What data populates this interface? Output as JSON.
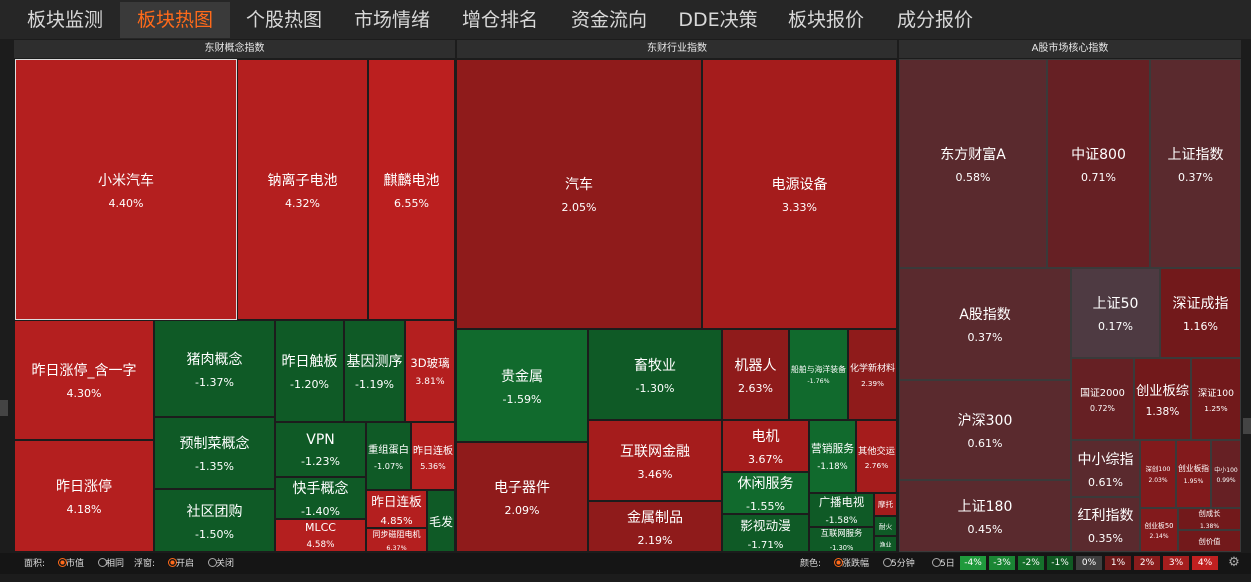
{
  "tabs": [
    "板块监测",
    "板块热图",
    "个股热图",
    "市场情绪",
    "增仓排名",
    "资金流向",
    "DDE决策",
    "板块报价",
    "成分报价"
  ],
  "panels": [
    {
      "title": "东财概念指数",
      "tiles": [
        {
          "name": "小米汽车",
          "change": "4.40%"
        },
        {
          "name": "钠离子电池",
          "change": "4.32%"
        },
        {
          "name": "麒麟电池",
          "change": "6.55%"
        },
        {
          "name": "昨日涨停_含一字",
          "change": "4.30%"
        },
        {
          "name": "昨日涨停",
          "change": "4.18%"
        },
        {
          "name": "猪肉概念",
          "change": "-1.37%"
        },
        {
          "name": "预制菜概念",
          "change": "-1.35%"
        },
        {
          "name": "社区团购",
          "change": "-1.50%"
        },
        {
          "name": "昨日触板",
          "change": "-1.20%"
        },
        {
          "name": "基因测序",
          "change": "-1.19%"
        },
        {
          "name": "3D玻璃",
          "change": "3.81%"
        },
        {
          "name": "VPN",
          "change": "-1.23%"
        },
        {
          "name": "快手概念",
          "change": "-1.40%"
        },
        {
          "name": "MLCC",
          "change": "4.58%"
        },
        {
          "name": "重组蛋白",
          "change": "-1.07%"
        },
        {
          "name": "昨日连板",
          "change": "5.36%"
        },
        {
          "name": "昨日连板",
          "change": "4.85%"
        },
        {
          "name": "同步磁阻电机",
          "change": "6.37%"
        },
        {
          "name": "毛发"
        }
      ]
    },
    {
      "title": "东财行业指数",
      "tiles": [
        {
          "name": "汽车",
          "change": "2.05%"
        },
        {
          "name": "电源设备",
          "change": "3.33%"
        },
        {
          "name": "贵金属",
          "change": "-1.59%"
        },
        {
          "name": "畜牧业",
          "change": "-1.30%"
        },
        {
          "name": "机器人",
          "change": "2.63%"
        },
        {
          "name": "船舶与海洋装备",
          "change": "-1.76%"
        },
        {
          "name": "化学新材料",
          "change": "2.39%"
        },
        {
          "name": "电子器件",
          "change": "2.09%"
        },
        {
          "name": "互联网金融",
          "change": "3.46%"
        },
        {
          "name": "金属制品",
          "change": "2.19%"
        },
        {
          "name": "电机",
          "change": "3.67%"
        },
        {
          "name": "休闲服务",
          "change": "-1.55%"
        },
        {
          "name": "影视动漫",
          "change": "-1.71%"
        },
        {
          "name": "营销服务",
          "change": "-1.18%"
        },
        {
          "name": "其他交运",
          "change": "2.76%"
        },
        {
          "name": "广播电视",
          "change": "-1.58%"
        },
        {
          "name": "互联网服务",
          "change": "-1.30%"
        },
        {
          "name": "摩托"
        },
        {
          "name": "耐火"
        },
        {
          "name": "渔业"
        }
      ]
    },
    {
      "title": "A股市场核心指数",
      "tiles": [
        {
          "name": "东方财富A",
          "change": "0.58%"
        },
        {
          "name": "中证800",
          "change": "0.71%"
        },
        {
          "name": "上证指数",
          "change": "0.37%"
        },
        {
          "name": "A股指数",
          "change": "0.37%"
        },
        {
          "name": "沪深300",
          "change": "0.61%"
        },
        {
          "name": "上证180",
          "change": "0.45%"
        },
        {
          "name": "上证50",
          "change": "0.17%"
        },
        {
          "name": "深证成指",
          "change": "1.16%"
        },
        {
          "name": "国证2000",
          "change": "0.72%"
        },
        {
          "name": "创业板综",
          "change": "1.38%"
        },
        {
          "name": "深证100",
          "change": "1.25%"
        },
        {
          "name": "中小综指",
          "change": "0.61%"
        },
        {
          "name": "深创100",
          "change": "2.03%"
        },
        {
          "name": "创业板指",
          "change": "1.95%"
        },
        {
          "name": "中小100",
          "change": "0.99%"
        },
        {
          "name": "红利指数",
          "change": "0.35%"
        },
        {
          "name": "创业板50",
          "change": "2.14%"
        },
        {
          "name": "创成长",
          "change": "1.38%"
        },
        {
          "name": "创价值"
        }
      ]
    }
  ],
  "controls": {
    "area_label": "面积:",
    "area_options": [
      "市值",
      "相同"
    ],
    "float_label": "浮窗:",
    "float_options": [
      "开启",
      "关闭"
    ],
    "color_label": "颜色:",
    "color_options": [
      "涨跌幅",
      "5分钟",
      "5日"
    ],
    "scale": [
      "-4%",
      "-3%",
      "-2%",
      "-1%",
      "0%",
      "1%",
      "2%",
      "3%",
      "4%"
    ]
  }
}
